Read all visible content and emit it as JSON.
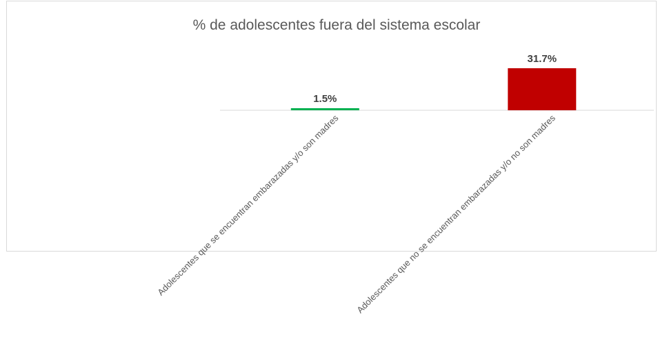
{
  "chart_data": {
    "type": "bar",
    "title": "% de adolescentes fuera del sistema escolar",
    "categories": [
      "Adolescentes que se encuentran embarazadas y/o son madres",
      "Adolescentes que no se encuentran embarazadas y/o  no son madres"
    ],
    "values": [
      1.5,
      31.7
    ],
    "data_labels": [
      "1.5%",
      "31.7%"
    ],
    "colors": [
      "#00b050",
      "#c00000"
    ],
    "ylim": [
      0,
      31.7
    ],
    "grid": false,
    "legend": "none"
  }
}
